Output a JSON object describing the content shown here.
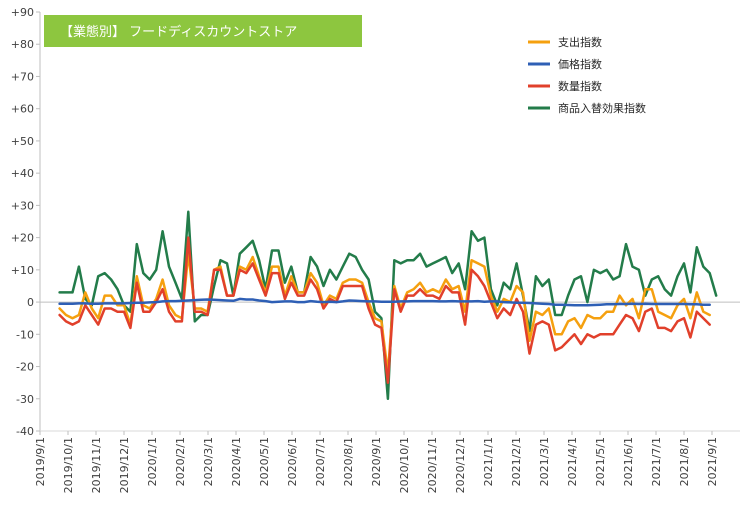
{
  "chart_data": {
    "type": "line",
    "title": "【業態別】 フードディスカウントストア",
    "title_bg": "#8dc63f",
    "y_ticks": [
      "+90",
      "+80",
      "+70",
      "+60",
      "+50",
      "+40",
      "+30",
      "+20",
      "+10",
      "0",
      "-10",
      "-20",
      "-30",
      "-40"
    ],
    "ylim": [
      -40,
      90
    ],
    "x_tick_labels": [
      "2019/9/1",
      "2019/10/1",
      "2019/11/1",
      "2019/12/1",
      "2020/1/1",
      "2020/2/1",
      "2020/3/1",
      "2020/4/1",
      "2020/5/1",
      "2020/6/1",
      "2020/7/1",
      "2020/8/1",
      "2020/9/1",
      "2020/10/1",
      "2020/11/1",
      "2020/12/1",
      "2021/1/1",
      "2021/2/1",
      "2021/3/1",
      "2021/4/1",
      "2021/5/1",
      "2021/6/1",
      "2021/7/1",
      "2021/8/1",
      "2021/9/1"
    ],
    "weeks_per_month": 4.35,
    "grid": false,
    "legend_position": "top-right",
    "series": [
      {
        "name": "支出指数",
        "color": "#f5a00f",
        "values": [
          -2,
          -4,
          -5,
          -4,
          3,
          -2,
          -5,
          2,
          2,
          -1,
          -1,
          -7,
          8,
          -1,
          -2,
          1,
          7,
          -1,
          -4,
          -5,
          15,
          -2,
          -2,
          -3,
          10,
          11,
          2,
          2,
          11,
          10,
          14,
          8,
          3,
          11,
          11,
          2,
          8,
          3,
          3,
          9,
          6,
          -1,
          2,
          1,
          6,
          7,
          7,
          6,
          0,
          -5,
          -6,
          -22,
          5,
          -2,
          3,
          4,
          6,
          3,
          4,
          3,
          7,
          4,
          5,
          -3,
          13,
          12,
          11,
          2,
          -3,
          1,
          0,
          5,
          3,
          -12,
          -3,
          -4,
          -2,
          -10,
          -10,
          -6,
          -5,
          -8,
          -4,
          -5,
          -5,
          -3,
          -3,
          2,
          -1,
          1,
          -5,
          4,
          4,
          -3,
          -4,
          -5,
          -1,
          1,
          -5,
          3,
          -3,
          -4
        ]
      },
      {
        "name": "価格指数",
        "color": "#2e5fb5",
        "values": [
          -0.5,
          -0.5,
          -0.5,
          -0.4,
          -0.4,
          -0.5,
          -0.5,
          -0.4,
          -0.4,
          -0.4,
          -0.4,
          -0.3,
          -0.2,
          -0.2,
          -0.1,
          0,
          0.2,
          0.3,
          0.3,
          0.4,
          0.5,
          0.6,
          0.7,
          0.8,
          0.7,
          0.6,
          0.5,
          0.4,
          1,
          0.8,
          0.8,
          0.5,
          0.3,
          0,
          0.1,
          0.2,
          0.2,
          0,
          0,
          0.3,
          0.1,
          0,
          0.1,
          0,
          0.2,
          0.5,
          0.4,
          0.3,
          0.2,
          0.2,
          0.1,
          0.1,
          0.1,
          0.2,
          0.2,
          0.3,
          0.3,
          0.3,
          0.3,
          0.2,
          0.2,
          0.3,
          0.2,
          0.2,
          0.2,
          0.3,
          0.1,
          0.2,
          0.2,
          0,
          -0.1,
          -0.2,
          -0.2,
          -0.3,
          -0.4,
          -0.5,
          -0.6,
          -0.8,
          -0.8,
          -0.9,
          -1,
          -1,
          -1,
          -0.9,
          -0.8,
          -0.7,
          -0.7,
          -0.6,
          -0.6,
          -0.5,
          -0.6,
          -0.5,
          -0.6,
          -0.6,
          -0.6,
          -0.6,
          -0.6,
          -0.6,
          -0.7,
          -0.7,
          -0.8,
          -0.8
        ]
      },
      {
        "name": "数量指数",
        "color": "#e1402b",
        "values": [
          -4,
          -6,
          -7,
          -6,
          -1,
          -4,
          -7,
          -2,
          -2,
          -3,
          -3,
          -8,
          6,
          -3,
          -3,
          0,
          4,
          -3,
          -6,
          -6,
          20,
          -3,
          -3,
          -4,
          10,
          10,
          2,
          2,
          10,
          9,
          12,
          7,
          2,
          9,
          9,
          1,
          6,
          2,
          2,
          7,
          4,
          -2,
          1,
          0,
          5,
          5,
          5,
          5,
          -2,
          -7,
          -8,
          -25,
          4,
          -3,
          2,
          2,
          4,
          2,
          2,
          1,
          5,
          3,
          3,
          -7,
          10,
          8,
          5,
          0,
          -5,
          -2,
          -4,
          1,
          -3,
          -16,
          -7,
          -6,
          -7,
          -15,
          -14,
          -12,
          -10,
          -13,
          -10,
          -11,
          -10,
          -10,
          -10,
          -7,
          -4,
          -5,
          -9,
          -3,
          -2,
          -8,
          -8,
          -9,
          -6,
          -5,
          -11,
          -3,
          -5,
          -7
        ]
      },
      {
        "name": "商品入替効果指数",
        "color": "#237c4a",
        "values": [
          3,
          3,
          3,
          11,
          1,
          -1,
          8,
          9,
          7,
          4,
          -1,
          -3,
          18,
          9,
          7,
          10,
          22,
          11,
          6,
          1,
          28,
          -6,
          -4,
          -4,
          5,
          13,
          12,
          2,
          15,
          17,
          19,
          13,
          4,
          16,
          16,
          6,
          11,
          3,
          3,
          14,
          11,
          5,
          10,
          7,
          11,
          15,
          14,
          10,
          7,
          -3,
          -5,
          -30,
          13,
          12,
          13,
          13,
          15,
          11,
          12,
          13,
          14,
          9,
          12,
          4,
          22,
          19,
          20,
          4,
          -1,
          6,
          4,
          12,
          2,
          -9,
          8,
          5,
          7,
          -4,
          -4,
          2,
          7,
          8,
          0,
          10,
          9,
          10,
          7,
          8,
          18,
          11,
          10,
          2,
          7,
          8,
          4,
          2,
          8,
          12,
          3,
          17,
          11,
          9,
          2
        ]
      }
    ]
  }
}
